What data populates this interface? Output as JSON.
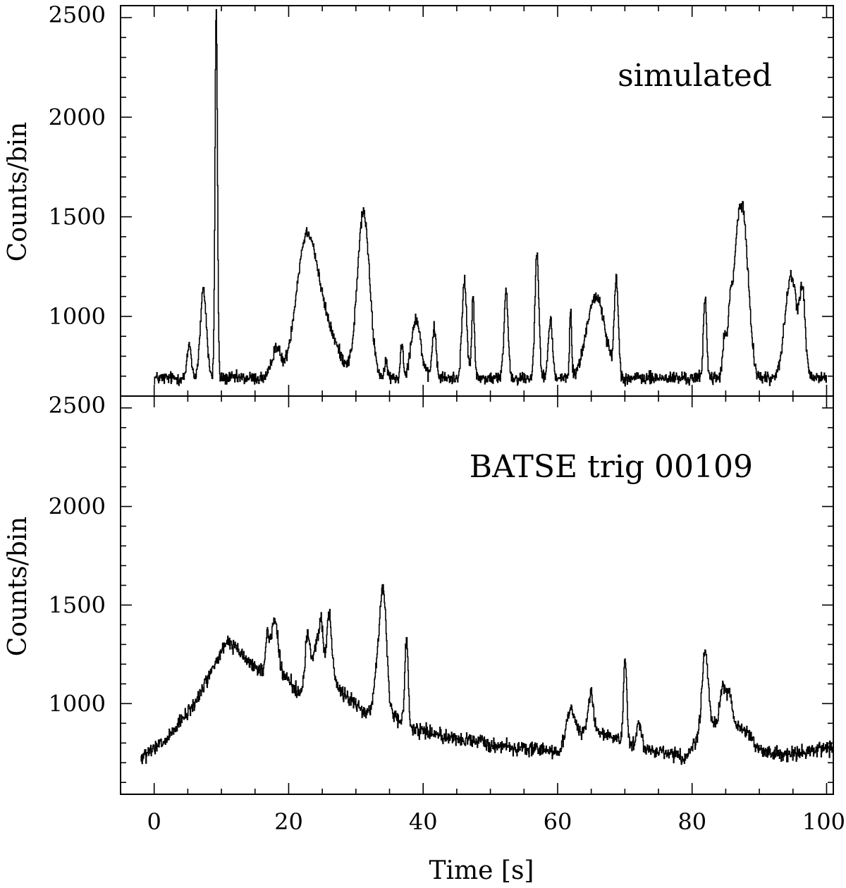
{
  "chart_data": [
    {
      "type": "line",
      "panel": "top",
      "annotation": "simulated",
      "xlabel": "",
      "ylabel": "Counts/bin",
      "xlim": [
        -5,
        101
      ],
      "ylim": [
        600,
        2560
      ],
      "x_ticks": [
        "0",
        "20",
        "40",
        "60",
        "80",
        "100"
      ],
      "y_ticks": [
        "1000",
        "1500",
        "2000",
        "2500"
      ],
      "x_tick_values": [
        0,
        20,
        40,
        60,
        80,
        100
      ],
      "y_tick_values": [
        1000,
        1500,
        2000,
        2500
      ],
      "x_range": [
        0,
        100
      ],
      "baseline": 690,
      "noise": 25,
      "components": [
        {
          "t": 5.2,
          "amp": 170,
          "width": 0.3
        },
        {
          "t": 7.3,
          "amp": 440,
          "width": 0.45
        },
        {
          "t": 9.2,
          "amp": 1860,
          "width": 0.18
        },
        {
          "t": 18.1,
          "amp": 150,
          "width": 0.6
        },
        {
          "t": 22.5,
          "amp": 560,
          "width": 1.5
        },
        {
          "t": 24.8,
          "amp": 280,
          "width": 2.2
        },
        {
          "t": 31.1,
          "amp": 830,
          "width": 0.9
        },
        {
          "t": 34.5,
          "amp": 80,
          "width": 0.2
        },
        {
          "t": 36.8,
          "amp": 180,
          "width": 0.2
        },
        {
          "t": 38.9,
          "amp": 300,
          "width": 0.7
        },
        {
          "t": 41.6,
          "amp": 250,
          "width": 0.3
        },
        {
          "t": 46.1,
          "amp": 480,
          "width": 0.35
        },
        {
          "t": 47.4,
          "amp": 420,
          "width": 0.2
        },
        {
          "t": 52.3,
          "amp": 440,
          "width": 0.3
        },
        {
          "t": 56.9,
          "amp": 630,
          "width": 0.3
        },
        {
          "t": 58.9,
          "amp": 300,
          "width": 0.3
        },
        {
          "t": 61.9,
          "amp": 340,
          "width": 0.15
        },
        {
          "t": 65.3,
          "amp": 350,
          "width": 1.2
        },
        {
          "t": 66.7,
          "amp": 130,
          "width": 1.0
        },
        {
          "t": 68.7,
          "amp": 480,
          "width": 0.3
        },
        {
          "t": 81.9,
          "amp": 400,
          "width": 0.25
        },
        {
          "t": 84.8,
          "amp": 200,
          "width": 0.3
        },
        {
          "t": 85.6,
          "amp": 250,
          "width": 0.3
        },
        {
          "t": 87.6,
          "amp": 760,
          "width": 0.8
        },
        {
          "t": 86.5,
          "amp": 390,
          "width": 0.6
        },
        {
          "t": 94.7,
          "amp": 510,
          "width": 0.9
        },
        {
          "t": 96.4,
          "amp": 380,
          "width": 0.4
        }
      ]
    },
    {
      "type": "line",
      "panel": "bottom",
      "annotation": "BATSE trig 00109",
      "xlabel": "Time [s]",
      "ylabel": "Counts/bin",
      "xlim": [
        -5,
        101
      ],
      "ylim": [
        540,
        2560
      ],
      "x_ticks": [
        "0",
        "20",
        "40",
        "60",
        "80",
        "100"
      ],
      "y_ticks": [
        "1000",
        "1500",
        "2000",
        "2500"
      ],
      "x_tick_values": [
        0,
        20,
        40,
        60,
        80,
        100
      ],
      "y_tick_values": [
        1000,
        1500,
        2000,
        2500
      ],
      "x_range": [
        -2,
        101
      ],
      "noise": 28,
      "envelope": [
        [
          -2,
          720
        ],
        [
          2,
          820
        ],
        [
          6,
          1000
        ],
        [
          9,
          1200
        ],
        [
          11,
          1320
        ],
        [
          14,
          1210
        ],
        [
          16,
          1160
        ],
        [
          20,
          1120
        ],
        [
          22,
          1030
        ],
        [
          25,
          1120
        ],
        [
          28,
          1060
        ],
        [
          31,
          960
        ],
        [
          36,
          920
        ],
        [
          38,
          880
        ],
        [
          45,
          820
        ],
        [
          55,
          770
        ],
        [
          60,
          760
        ],
        [
          63,
          850
        ],
        [
          66,
          860
        ],
        [
          70,
          790
        ],
        [
          75,
          760
        ],
        [
          79,
          730
        ],
        [
          82,
          880
        ],
        [
          85,
          910
        ],
        [
          88,
          860
        ],
        [
          90,
          760
        ],
        [
          95,
          740
        ],
        [
          101,
          780
        ]
      ],
      "components": [
        {
          "t": 16.8,
          "amp": 180,
          "width": 0.3
        },
        {
          "t": 17.9,
          "amp": 290,
          "width": 0.5
        },
        {
          "t": 22.8,
          "amp": 300,
          "width": 0.4
        },
        {
          "t": 24.0,
          "amp": 200,
          "width": 0.4
        },
        {
          "t": 24.8,
          "amp": 300,
          "width": 0.3
        },
        {
          "t": 26.0,
          "amp": 350,
          "width": 0.4
        },
        {
          "t": 33.3,
          "amp": 230,
          "width": 0.6
        },
        {
          "t": 34.1,
          "amp": 540,
          "width": 0.5
        },
        {
          "t": 37.5,
          "amp": 440,
          "width": 0.25
        },
        {
          "t": 61.9,
          "amp": 150,
          "width": 0.6
        },
        {
          "t": 64.9,
          "amp": 190,
          "width": 0.4
        },
        {
          "t": 70.0,
          "amp": 420,
          "width": 0.25
        },
        {
          "t": 72.1,
          "amp": 120,
          "width": 0.4
        },
        {
          "t": 81.9,
          "amp": 400,
          "width": 0.45
        },
        {
          "t": 84.5,
          "amp": 180,
          "width": 0.4
        },
        {
          "t": 85.5,
          "amp": 150,
          "width": 0.4
        }
      ]
    }
  ]
}
